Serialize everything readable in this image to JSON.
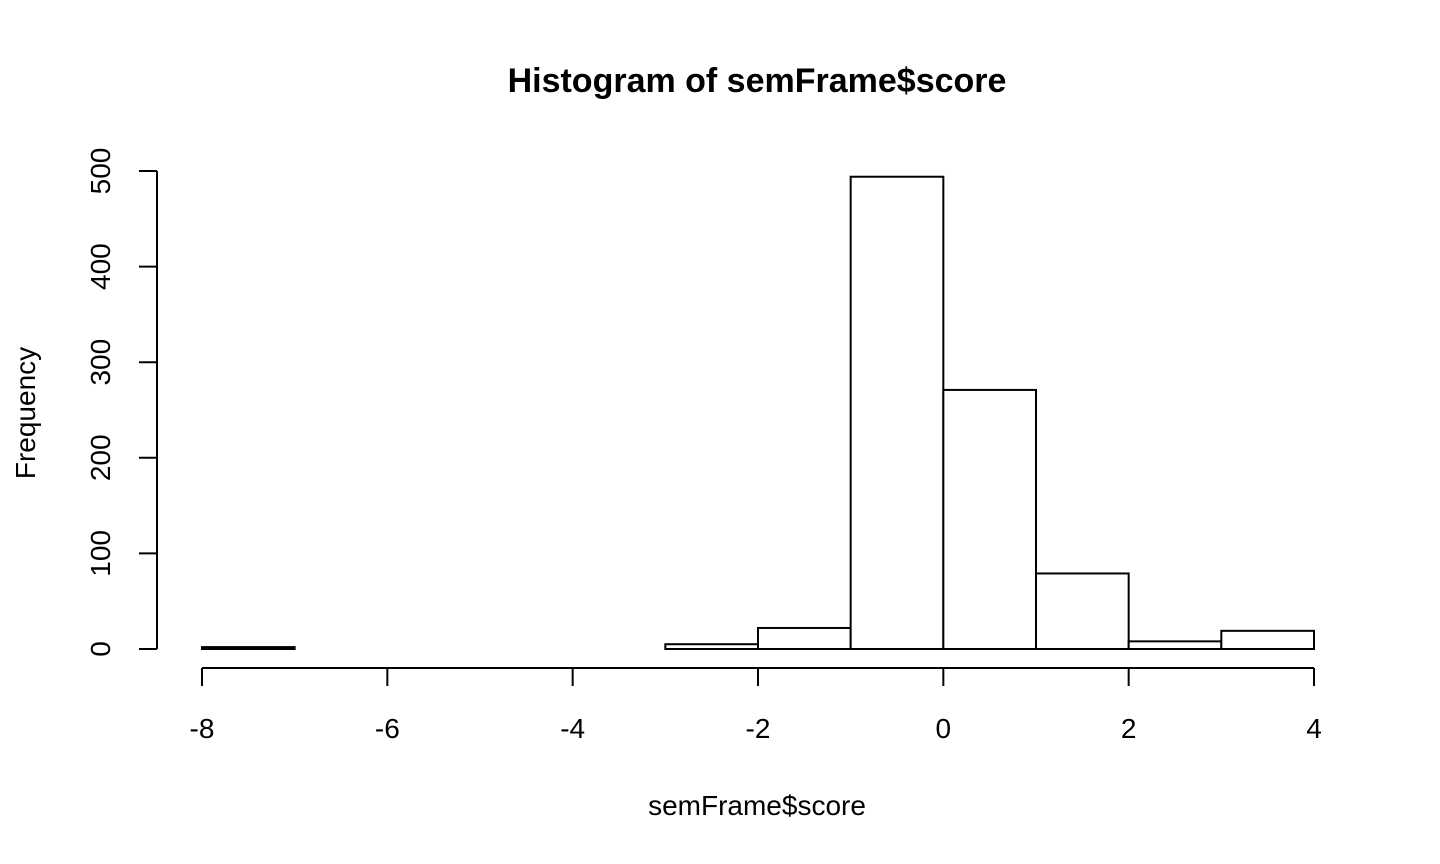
{
  "chart_data": {
    "type": "bar",
    "subtype": "histogram",
    "title": "Histogram of semFrame$score",
    "xlabel": "semFrame$score",
    "ylabel": "Frequency",
    "bins": [
      {
        "x0": -8,
        "x1": -7,
        "count": 2
      },
      {
        "x0": -7,
        "x1": -6,
        "count": 0
      },
      {
        "x0": -6,
        "x1": -5,
        "count": 0
      },
      {
        "x0": -5,
        "x1": -4,
        "count": 0
      },
      {
        "x0": -4,
        "x1": -3,
        "count": 0
      },
      {
        "x0": -3,
        "x1": -2,
        "count": 5
      },
      {
        "x0": -2,
        "x1": -1,
        "count": 22
      },
      {
        "x0": -1,
        "x1": 0,
        "count": 494
      },
      {
        "x0": 0,
        "x1": 1,
        "count": 271
      },
      {
        "x0": 1,
        "x1": 2,
        "count": 79
      },
      {
        "x0": 2,
        "x1": 3,
        "count": 8
      },
      {
        "x0": 3,
        "x1": 4,
        "count": 19
      }
    ],
    "xlim": [
      -8,
      4
    ],
    "ylim": [
      0,
      500
    ],
    "xticks": [
      "-8",
      "-6",
      "-4",
      "-2",
      "0",
      "2",
      "4"
    ],
    "yticks": [
      "0",
      "100",
      "200",
      "300",
      "400",
      "500"
    ],
    "grid": false,
    "legend": "none",
    "colors": {
      "bar_fill": "#ffffff",
      "bar_stroke": "#000000"
    }
  }
}
